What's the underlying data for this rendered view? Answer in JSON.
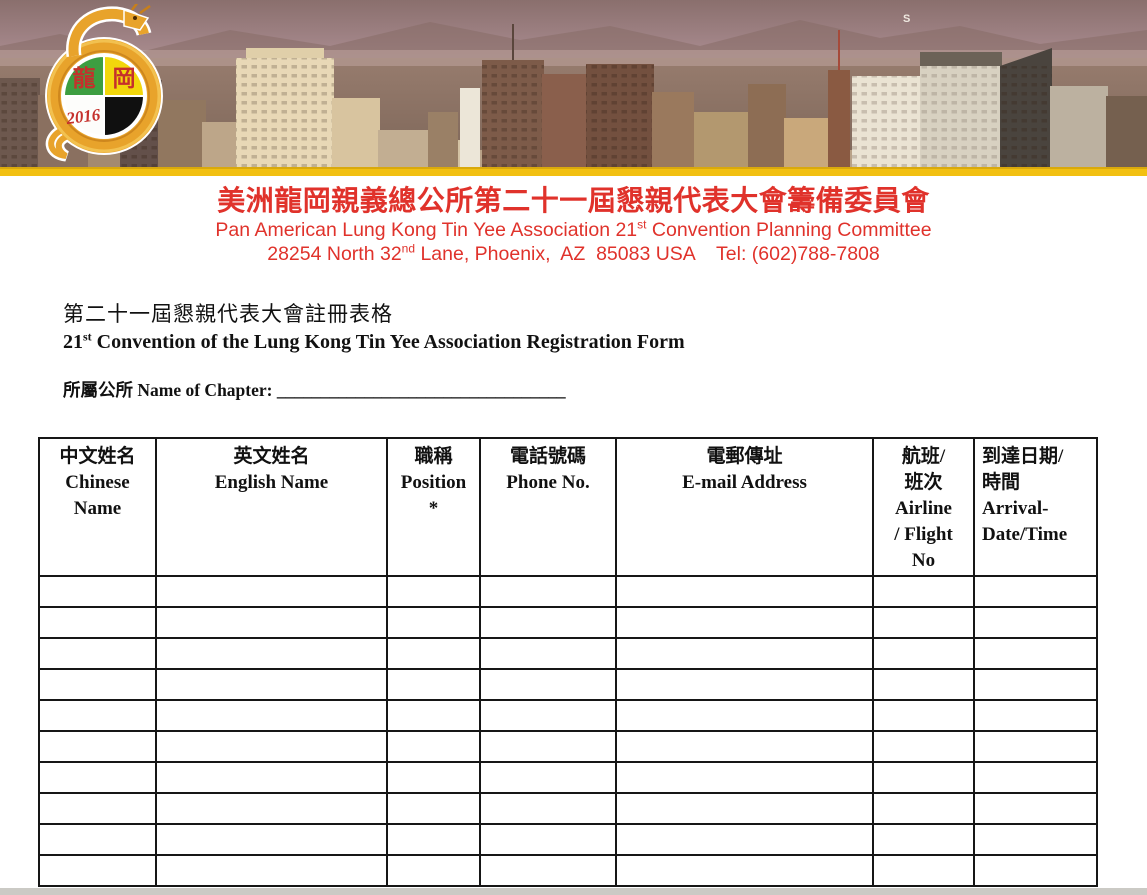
{
  "logo": {
    "char_left": "龍",
    "char_right": "岡",
    "year": "2016"
  },
  "banner": {
    "mountain_mark": "S"
  },
  "letterhead": {
    "title_cjk": "美洲龍岡親義總公所第二十一屆懇親代表大會籌備委員會",
    "org_line": {
      "pre": "Pan American Lung Kong Tin Yee Association 21",
      "sup": "st",
      "post": " Convention Planning Committee"
    },
    "address_line": {
      "pre": "28254 North 32",
      "sup": "nd",
      "post": " Lane, Phoenix,  AZ  85083 USA    Tel: (602)788-7808"
    }
  },
  "form": {
    "title_cjk": "第二十一屆懇親代表大會註冊表格",
    "title_en": {
      "pre": "21",
      "sup": "st",
      "post": " Convention of the Lung Kong Tin Yee Association Registration Form"
    },
    "chapter": {
      "label": "所屬公所 Name of Chapter: ",
      "blank": "_________________________________"
    }
  },
  "table": {
    "columns": [
      {
        "id": "chinese-name",
        "lines": [
          "中文姓名",
          "Chinese",
          "Name"
        ]
      },
      {
        "id": "english-name",
        "lines": [
          "英文姓名",
          "English Name"
        ]
      },
      {
        "id": "position",
        "lines": [
          "職稱",
          "Position",
          "*"
        ]
      },
      {
        "id": "phone",
        "lines": [
          "電話號碼",
          "Phone No."
        ]
      },
      {
        "id": "email",
        "lines": [
          "電郵傳址",
          "E-mail Address"
        ]
      },
      {
        "id": "airline-flight",
        "lines": [
          "航班/",
          "班次",
          "Airline",
          "/ Flight",
          "No"
        ]
      },
      {
        "id": "arrival",
        "lines": [
          "到達日期/",
          "時間",
          "Arrival-",
          "Date/Time"
        ]
      }
    ],
    "rows": [
      [
        "",
        "",
        "",
        "",
        "",
        "",
        ""
      ],
      [
        "",
        "",
        "",
        "",
        "",
        "",
        ""
      ],
      [
        "",
        "",
        "",
        "",
        "",
        "",
        ""
      ],
      [
        "",
        "",
        "",
        "",
        "",
        "",
        ""
      ],
      [
        "",
        "",
        "",
        "",
        "",
        "",
        ""
      ],
      [
        "",
        "",
        "",
        "",
        "",
        "",
        ""
      ],
      [
        "",
        "",
        "",
        "",
        "",
        "",
        ""
      ],
      [
        "",
        "",
        "",
        "",
        "",
        "",
        ""
      ],
      [
        "",
        "",
        "",
        "",
        "",
        "",
        ""
      ],
      [
        "",
        "",
        "",
        "",
        "",
        "",
        ""
      ]
    ]
  },
  "colors": {
    "accent_red": "#e0322b",
    "logo_red": "#c5302c",
    "logo_green": "#3d9e41",
    "logo_yellow": "#f2d70c",
    "logo_black": "#101010",
    "dragon_gold": "#e8a32b",
    "banner_gold_band": "#f2c011",
    "table_border": "#161616",
    "page_edge_gray": "#cbcac5"
  }
}
